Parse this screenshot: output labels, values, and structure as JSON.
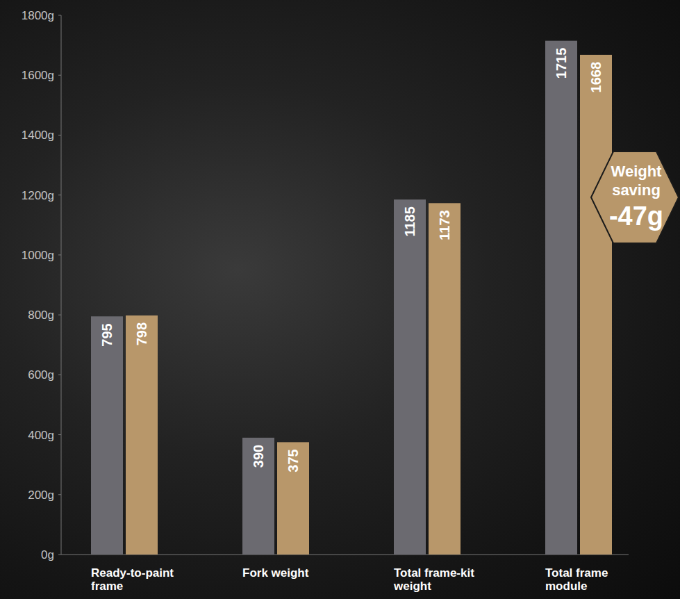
{
  "chart_data": {
    "type": "bar",
    "categories": [
      "Ready-to-paint frame",
      "Fork weight",
      "Total frame-kit weight",
      "Total frame module"
    ],
    "series": [
      {
        "color": "#6b6a70",
        "values": [
          795,
          390,
          1185,
          1715
        ]
      },
      {
        "color": "#b8976a",
        "values": [
          798,
          375,
          1173,
          1668
        ]
      }
    ],
    "ylim": [
      0,
      1800
    ],
    "yticks": [
      {
        "value": 0,
        "label": "0g"
      },
      {
        "value": 200,
        "label": "200g"
      },
      {
        "value": 400,
        "label": "400g"
      },
      {
        "value": 600,
        "label": "600g"
      },
      {
        "value": 800,
        "label": "800g"
      },
      {
        "value": 1000,
        "label": "1000g"
      },
      {
        "value": 1200,
        "label": "1200g"
      },
      {
        "value": 1400,
        "label": "1400g"
      },
      {
        "value": 1600,
        "label": "1600g"
      },
      {
        "value": 1800,
        "label": "1800g"
      }
    ],
    "grid": false,
    "data_labels": true,
    "annotation": {
      "label": "Weight saving",
      "value": "-47g"
    }
  }
}
